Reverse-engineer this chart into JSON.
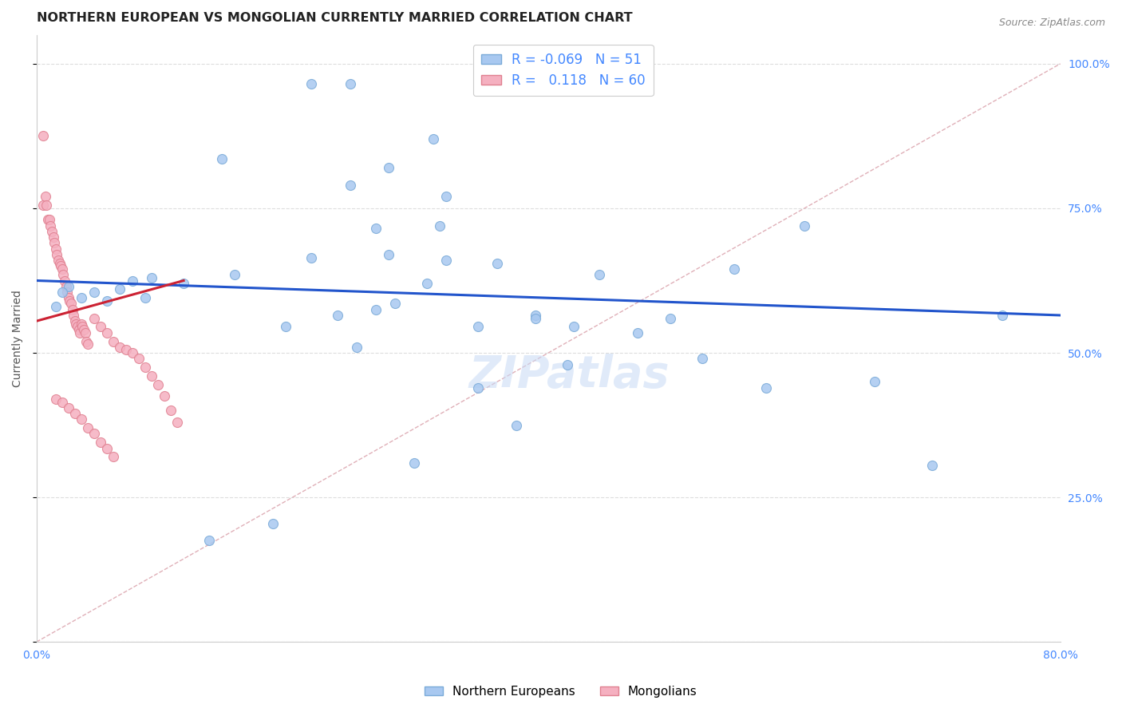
{
  "title": "NORTHERN EUROPEAN VS MONGOLIAN CURRENTLY MARRIED CORRELATION CHART",
  "source": "Source: ZipAtlas.com",
  "ylabel": "Currently Married",
  "xlim": [
    0.0,
    0.8
  ],
  "ylim": [
    0.0,
    1.05
  ],
  "legend_blue_r": "-0.069",
  "legend_blue_n": "51",
  "legend_pink_r": "0.118",
  "legend_pink_n": "60",
  "blue_x": [
    0.215,
    0.245,
    0.145,
    0.31,
    0.275,
    0.245,
    0.32,
    0.315,
    0.265,
    0.215,
    0.155,
    0.115,
    0.09,
    0.085,
    0.075,
    0.065,
    0.055,
    0.045,
    0.035,
    0.025,
    0.02,
    0.015,
    0.25,
    0.39,
    0.44,
    0.495,
    0.545,
    0.6,
    0.655,
    0.7,
    0.755,
    0.57,
    0.415,
    0.47,
    0.52,
    0.375,
    0.345,
    0.295,
    0.185,
    0.135,
    0.275,
    0.32,
    0.36,
    0.305,
    0.265,
    0.235,
    0.195,
    0.345,
    0.39,
    0.42,
    0.28
  ],
  "blue_y": [
    0.965,
    0.965,
    0.835,
    0.87,
    0.82,
    0.79,
    0.77,
    0.72,
    0.715,
    0.665,
    0.635,
    0.62,
    0.63,
    0.595,
    0.625,
    0.61,
    0.59,
    0.605,
    0.595,
    0.615,
    0.605,
    0.58,
    0.51,
    0.565,
    0.635,
    0.56,
    0.645,
    0.72,
    0.45,
    0.305,
    0.565,
    0.44,
    0.48,
    0.535,
    0.49,
    0.375,
    0.44,
    0.31,
    0.205,
    0.175,
    0.67,
    0.66,
    0.655,
    0.62,
    0.575,
    0.565,
    0.545,
    0.545,
    0.56,
    0.545,
    0.585
  ],
  "pink_x": [
    0.005,
    0.005,
    0.007,
    0.008,
    0.009,
    0.01,
    0.011,
    0.012,
    0.013,
    0.014,
    0.015,
    0.016,
    0.017,
    0.018,
    0.019,
    0.02,
    0.021,
    0.022,
    0.023,
    0.024,
    0.025,
    0.026,
    0.027,
    0.028,
    0.029,
    0.03,
    0.031,
    0.032,
    0.033,
    0.034,
    0.035,
    0.036,
    0.037,
    0.038,
    0.039,
    0.04,
    0.045,
    0.05,
    0.055,
    0.06,
    0.065,
    0.07,
    0.075,
    0.08,
    0.085,
    0.09,
    0.095,
    0.1,
    0.105,
    0.11,
    0.015,
    0.02,
    0.025,
    0.03,
    0.035,
    0.04,
    0.045,
    0.05,
    0.055,
    0.06
  ],
  "pink_y": [
    0.875,
    0.755,
    0.77,
    0.755,
    0.73,
    0.73,
    0.72,
    0.71,
    0.7,
    0.69,
    0.68,
    0.67,
    0.66,
    0.655,
    0.65,
    0.645,
    0.635,
    0.625,
    0.615,
    0.605,
    0.595,
    0.59,
    0.585,
    0.575,
    0.565,
    0.555,
    0.55,
    0.545,
    0.54,
    0.535,
    0.55,
    0.545,
    0.54,
    0.535,
    0.52,
    0.515,
    0.56,
    0.545,
    0.535,
    0.52,
    0.51,
    0.505,
    0.5,
    0.49,
    0.475,
    0.46,
    0.445,
    0.425,
    0.4,
    0.38,
    0.42,
    0.415,
    0.405,
    0.395,
    0.385,
    0.37,
    0.36,
    0.345,
    0.335,
    0.32
  ],
  "blue_color": "#a8c8f0",
  "blue_edge": "#7aaad8",
  "pink_color": "#f5b0c0",
  "pink_edge": "#e08090",
  "blue_line_x": [
    0.0,
    0.8
  ],
  "blue_line_y": [
    0.625,
    0.565
  ],
  "pink_line_x": [
    0.0,
    0.115
  ],
  "pink_line_y": [
    0.555,
    0.625
  ],
  "blue_line_color": "#2255cc",
  "pink_line_color": "#cc2233",
  "diag_line_x": [
    0.0,
    0.8
  ],
  "diag_line_y": [
    0.0,
    1.0
  ],
  "diag_color": "#e0b0b8",
  "watermark": "ZIPatlas",
  "background_color": "#ffffff",
  "grid_color": "#dddddd",
  "title_fontsize": 11.5,
  "tick_fontsize": 10,
  "marker_size": 75
}
